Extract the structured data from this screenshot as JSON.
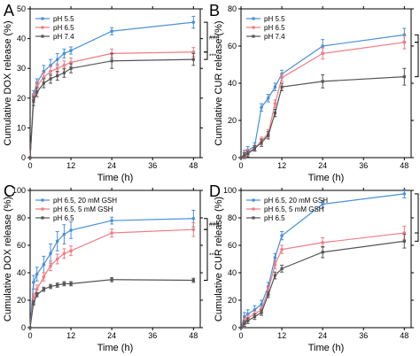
{
  "colors": {
    "blue": "#4a90d9",
    "red": "#f07c83",
    "gray": "#555555"
  },
  "chart_data": [
    {
      "panel": "A",
      "type": "line",
      "xlabel": "Time (h)",
      "ylabel": "Cumulative DOX release (%)",
      "xlim": [
        0,
        50
      ],
      "ylim": [
        0,
        50
      ],
      "xticks": [
        0,
        12,
        24,
        36,
        48
      ],
      "yticks": [
        0,
        10,
        20,
        30,
        40,
        50
      ],
      "legend_position": "top-left",
      "series": [
        {
          "name": "pH 5.5",
          "color": "blue",
          "marker": "circle",
          "x": [
            0,
            1,
            2,
            4,
            6,
            8,
            10,
            12,
            24,
            48
          ],
          "y": [
            0,
            21,
            25,
            29,
            31,
            33,
            35,
            36,
            42.5,
            45.5
          ],
          "err": [
            0,
            1.5,
            1.5,
            2,
            2,
            2,
            1.5,
            1.2,
            1.2,
            2
          ]
        },
        {
          "name": "pH 6.5",
          "color": "red",
          "marker": "circle",
          "x": [
            0,
            1,
            2,
            4,
            6,
            8,
            10,
            12,
            24,
            48
          ],
          "y": [
            0,
            20,
            24,
            27,
            29,
            30,
            31,
            32,
            35,
            35.5
          ],
          "err": [
            0,
            1.5,
            1.5,
            1.5,
            1.5,
            1.5,
            1.5,
            1.5,
            1.5,
            1.5
          ]
        },
        {
          "name": "pH 7.4",
          "color": "gray",
          "marker": "square",
          "x": [
            0,
            1,
            2,
            4,
            6,
            8,
            10,
            12,
            24,
            48
          ],
          "y": [
            0,
            19,
            22,
            25,
            26.5,
            27.5,
            28.5,
            30,
            32.5,
            33
          ],
          "err": [
            0,
            1.5,
            1.5,
            1.5,
            1.5,
            1.5,
            1.5,
            1.5,
            2.5,
            2
          ]
        }
      ],
      "significance": [
        {
          "label": "###",
          "from_series": 0,
          "to_series": 1
        },
        {
          "label": "***",
          "from_series": 1,
          "to_series": 2
        }
      ]
    },
    {
      "panel": "B",
      "type": "line",
      "xlabel": "Time (h)",
      "ylabel": "Cumulative CUR release (%)",
      "xlim": [
        0,
        50
      ],
      "ylim": [
        0,
        80
      ],
      "xticks": [
        0,
        12,
        24,
        36,
        48
      ],
      "yticks": [
        0,
        20,
        40,
        60,
        80
      ],
      "legend_position": "top-left",
      "series": [
        {
          "name": "pH 5.5",
          "color": "blue",
          "marker": "circle",
          "x": [
            0,
            1,
            2,
            4,
            6,
            8,
            10,
            12,
            24,
            48
          ],
          "y": [
            0,
            2,
            4,
            6,
            27,
            32,
            38,
            45,
            60,
            66
          ],
          "err": [
            0,
            2,
            2,
            2,
            2,
            2,
            2,
            2,
            3.5,
            3.5
          ]
        },
        {
          "name": "pH 6.5",
          "color": "red",
          "marker": "circle",
          "x": [
            0,
            1,
            2,
            4,
            6,
            8,
            10,
            12,
            24,
            48
          ],
          "y": [
            0,
            1.5,
            3,
            5,
            9,
            13,
            29,
            43,
            56,
            62
          ],
          "err": [
            0,
            1.5,
            1.5,
            1.5,
            2,
            2,
            2,
            2,
            3,
            3.5
          ]
        },
        {
          "name": "pH 7.4",
          "color": "gray",
          "marker": "square",
          "x": [
            0,
            1,
            2,
            4,
            6,
            8,
            10,
            12,
            24,
            48
          ],
          "y": [
            0,
            1,
            2,
            5,
            8,
            12,
            24,
            38,
            41,
            43.5
          ],
          "err": [
            0,
            1.5,
            1.5,
            1.5,
            2,
            2,
            2,
            2,
            3.5,
            4.5
          ]
        }
      ],
      "significance": [
        {
          "label": "#",
          "from_series": 0,
          "to_series": 1
        },
        {
          "label": "***",
          "from_series": 1,
          "to_series": 2
        }
      ]
    },
    {
      "panel": "C",
      "type": "line",
      "xlabel": "Time (h)",
      "ylabel": "Cumulative DOX release (%)",
      "xlim": [
        0,
        50
      ],
      "ylim": [
        0,
        100
      ],
      "xticks": [
        0,
        12,
        24,
        36,
        48
      ],
      "yticks": [
        0,
        20,
        40,
        60,
        80,
        100
      ],
      "legend_position": "top-left",
      "series": [
        {
          "name": "pH 6.5, 20 mM GSH",
          "color": "blue",
          "marker": "circle",
          "x": [
            0,
            1,
            2,
            4,
            6,
            8,
            10,
            12,
            24,
            48
          ],
          "y": [
            0,
            33,
            39,
            46,
            54,
            63,
            68,
            71,
            78,
            79.5
          ],
          "err": [
            0,
            5,
            5,
            6,
            7,
            7,
            7,
            6,
            2.5,
            6
          ]
        },
        {
          "name": "pH 6.5, 5 mM GSH",
          "color": "red",
          "marker": "circle",
          "x": [
            0,
            1,
            2,
            4,
            6,
            8,
            10,
            12,
            24,
            48
          ],
          "y": [
            0,
            22,
            28,
            37,
            45,
            50,
            54,
            56,
            69,
            71.5
          ],
          "err": [
            0,
            3,
            3,
            3,
            3.5,
            3.5,
            3.5,
            3.5,
            3,
            5
          ]
        },
        {
          "name": "pH 6.5",
          "color": "gray",
          "marker": "square",
          "x": [
            0,
            1,
            2,
            4,
            6,
            8,
            10,
            12,
            24,
            48
          ],
          "y": [
            0,
            18,
            24,
            28,
            30,
            31,
            32,
            32,
            35,
            34.5
          ],
          "err": [
            0,
            1.5,
            1.5,
            1.5,
            1.5,
            1.5,
            1.5,
            1.5,
            1.5,
            1.5
          ]
        }
      ],
      "significance": [
        {
          "label": "###",
          "from_series": 0,
          "to_series": 1
        },
        {
          "label": "***",
          "from_series": 1,
          "to_series": 2
        }
      ]
    },
    {
      "panel": "D",
      "type": "line",
      "xlabel": "Time (h)",
      "ylabel": "Cumulative CUR release (%)",
      "xlim": [
        0,
        50
      ],
      "ylim": [
        0,
        100
      ],
      "xticks": [
        0,
        12,
        24,
        36,
        48
      ],
      "yticks": [
        0,
        20,
        40,
        60,
        80,
        100
      ],
      "legend_position": "top-left",
      "series": [
        {
          "name": "pH 6.5, 20 mM GSH",
          "color": "blue",
          "marker": "circle",
          "x": [
            0,
            1,
            2,
            4,
            6,
            8,
            10,
            12,
            24,
            48
          ],
          "y": [
            0,
            8,
            10,
            13,
            17,
            30,
            51,
            67,
            90,
            97.5
          ],
          "err": [
            0,
            3,
            3,
            3,
            3,
            3,
            3,
            3,
            2.5,
            3
          ]
        },
        {
          "name": "pH 6.5, 5 mM GSH",
          "color": "red",
          "marker": "circle",
          "x": [
            0,
            1,
            2,
            4,
            6,
            8,
            10,
            12,
            24,
            48
          ],
          "y": [
            0,
            5,
            7,
            10,
            13,
            27,
            46,
            57,
            62,
            69
          ],
          "err": [
            0,
            2,
            2,
            2,
            2,
            2.5,
            3,
            3,
            3.5,
            5
          ]
        },
        {
          "name": "pH 6.5",
          "color": "gray",
          "marker": "square",
          "x": [
            0,
            1,
            2,
            4,
            6,
            8,
            10,
            12,
            24,
            48
          ],
          "y": [
            0,
            3,
            5,
            8,
            11,
            24,
            38,
            43,
            55,
            63
          ],
          "err": [
            0,
            2,
            2,
            2,
            2,
            2,
            2.5,
            2.5,
            4,
            5
          ]
        }
      ],
      "significance": [
        {
          "label": "####",
          "from_series": 0,
          "to_series": 1
        },
        {
          "label": "*",
          "from_series": 1,
          "to_series": 2
        }
      ]
    }
  ]
}
